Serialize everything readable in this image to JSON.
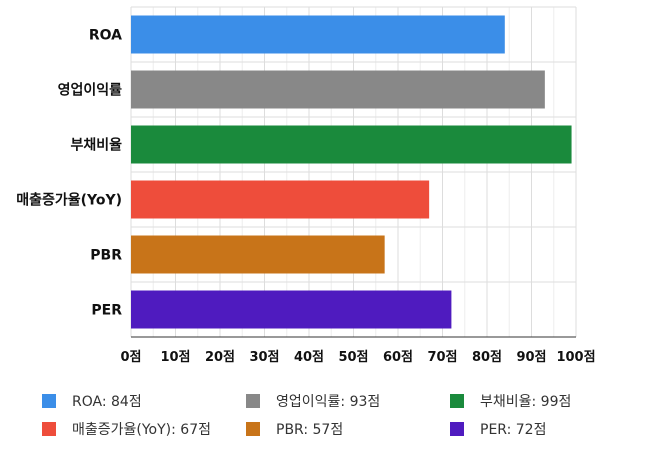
{
  "chart_data": {
    "type": "bar",
    "orientation": "horizontal",
    "categories": [
      "ROA",
      "영업이익률",
      "부채비율",
      "매출증가율(YoY)",
      "PBR",
      "PER"
    ],
    "values": [
      84,
      93,
      99,
      67,
      57,
      72
    ],
    "colors": [
      "#3b8ee8",
      "#888888",
      "#1a8a3c",
      "#ee4d3b",
      "#c87419",
      "#4f1bbf"
    ],
    "xticks": [
      "0점",
      "10점",
      "20점",
      "30점",
      "40점",
      "50점",
      "60점",
      "70점",
      "80점",
      "90점",
      "100점"
    ],
    "xlim": [
      0,
      100
    ],
    "grid": true,
    "legend_position": "bottom",
    "legend": [
      {
        "label": "ROA: 84점",
        "color": "#3b8ee8"
      },
      {
        "label": "영업이익률: 93점",
        "color": "#888888"
      },
      {
        "label": "부채비율: 99점",
        "color": "#1a8a3c"
      },
      {
        "label": "매출증가율(YoY): 67점",
        "color": "#ee4d3b"
      },
      {
        "label": "PBR: 57점",
        "color": "#c87419"
      },
      {
        "label": "PER: 72점",
        "color": "#4f1bbf"
      }
    ]
  }
}
